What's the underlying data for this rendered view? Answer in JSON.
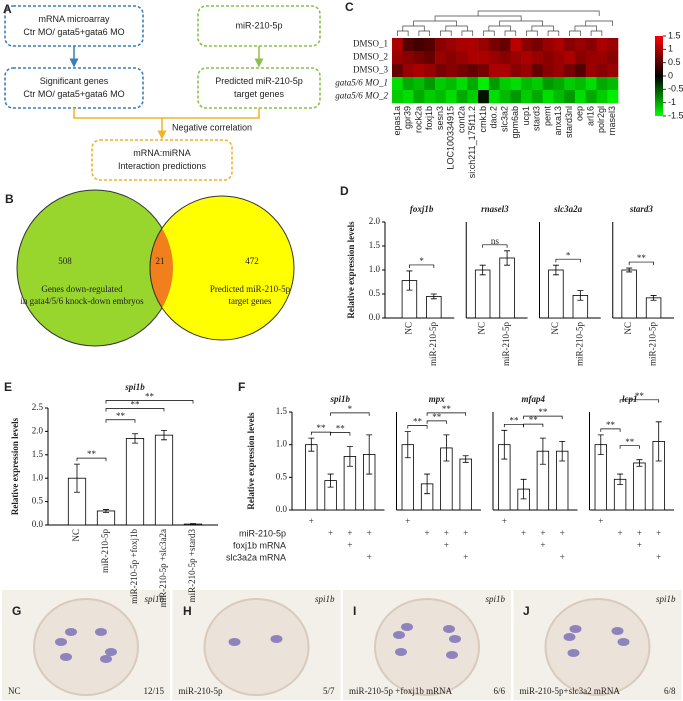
{
  "panels": [
    "A",
    "B",
    "C",
    "D",
    "E",
    "F",
    "G",
    "H",
    "I",
    "J"
  ],
  "flowchart": {
    "boxes": [
      {
        "lines": [
          "mRNA microarray",
          "Ctr MO/ gata5+gata6 MO"
        ]
      },
      {
        "lines": [
          "miR-210-5p"
        ]
      },
      {
        "lines": [
          "Significant genes",
          "Ctr MO/ gata5+gata6 MO"
        ]
      },
      {
        "lines": [
          "Predicted miR-210-5p",
          "target genes"
        ]
      },
      {
        "lines": [
          "mRNA:miRNA",
          "Interaction predictions"
        ]
      }
    ],
    "edge_label": "Negative correlation"
  },
  "venn": {
    "left": 508,
    "overlap": 21,
    "right": 472,
    "left_label": [
      "Genes down-regulated",
      "in gata4/5/6 knock-down embryos"
    ],
    "right_label": [
      "Predicted miR-210-5p",
      "target genes"
    ]
  },
  "heatmap": {
    "rows": [
      "DMSO_1",
      "DMSO_2",
      "DMSO_3",
      "gata5/6 MO_1",
      "gata5/6 MO_2"
    ],
    "columns": [
      "epas1a",
      "gpr39",
      "rock2a",
      "foxj1b",
      "sesn3",
      "LOC100334915",
      "cont2a",
      "si:ch211_175f11.2",
      "cmk1b",
      "dao.2",
      "slc3a2",
      "gpm6ab",
      "ucp1",
      "stard3",
      "pemt",
      "anxa13",
      "stard3nl",
      "oep",
      "arl16",
      "polr2gl",
      "rnasel3"
    ],
    "values": [
      [
        1.0,
        0.5,
        0.4,
        0.5,
        0.8,
        0.9,
        1.0,
        1.0,
        0.9,
        0.7,
        0.6,
        1.1,
        0.8,
        0.7,
        0.9,
        1.0,
        0.8,
        0.9,
        0.8,
        1.0,
        0.9
      ],
      [
        0.9,
        0.8,
        0.7,
        0.6,
        0.9,
        0.8,
        0.9,
        1.0,
        1.0,
        0.9,
        0.8,
        0.9,
        1.0,
        0.9,
        0.8,
        0.9,
        1.0,
        0.8,
        0.9,
        0.9,
        0.8
      ],
      [
        0.6,
        0.9,
        1.0,
        0.9,
        0.7,
        0.8,
        0.7,
        0.6,
        0.7,
        1.0,
        1.0,
        0.8,
        0.9,
        0.6,
        0.8,
        0.9,
        0.7,
        0.5,
        0.9,
        0.8,
        0.9
      ],
      [
        -1.3,
        -1.0,
        -1.1,
        -0.9,
        -1.2,
        -1.1,
        -1.3,
        -1.0,
        -1.4,
        -0.9,
        -1.2,
        -1.3,
        -1.1,
        -1.2,
        -0.9,
        -1.0,
        -1.2,
        -1.1,
        -1.3,
        -1.0,
        -1.1
      ],
      [
        -1.2,
        -1.3,
        -1.0,
        -1.2,
        -1.1,
        -1.3,
        -1.0,
        -1.2,
        -0.1,
        -1.3,
        -1.1,
        -0.9,
        -1.2,
        -1.0,
        -1.3,
        -1.1,
        -0.9,
        -1.3,
        -1.0,
        -1.2,
        -1.4
      ]
    ],
    "colorbar": {
      "lim": [
        -1.5,
        1.5
      ],
      "ticks": [
        1.5,
        1,
        0.5,
        0,
        -0.5,
        -1,
        -1.5
      ]
    }
  },
  "chart_data": [
    {
      "type": "bar",
      "ylabel": "Relative expression levels",
      "ylim": [
        0,
        2
      ],
      "yticks": [
        {
          "value": 0,
          "label": "0.0"
        },
        {
          "value": 0.5,
          "label": "0.5"
        },
        {
          "value": 1,
          "label": "1.0"
        },
        {
          "value": 1.5,
          "label": "1.5"
        },
        {
          "value": 2,
          "label": "2.0"
        }
      ],
      "categories": [
        "NC",
        "miR-210-5p"
      ],
      "groups": [
        {
          "name": "foxj1b",
          "values": [
            0.78,
            0.45
          ],
          "errors": [
            0.2,
            0.05
          ],
          "significance": [
            "*"
          ]
        },
        {
          "name": "rnasel3",
          "values": [
            1.0,
            1.25
          ],
          "errors": [
            0.1,
            0.15
          ],
          "significance": [
            "ns"
          ]
        },
        {
          "name": "slc3a2a",
          "values": [
            1.0,
            0.47
          ],
          "errors": [
            0.1,
            0.1
          ],
          "significance": [
            "*"
          ]
        },
        {
          "name": "stard3",
          "values": [
            1.0,
            0.42
          ],
          "errors": [
            0.04,
            0.05
          ],
          "significance": [
            "**"
          ]
        }
      ]
    },
    {
      "type": "bar",
      "title": "spi1b",
      "ylabel": "Relative expression levels",
      "ylim": [
        0,
        2.5
      ],
      "yticks": [
        {
          "value": 0,
          "label": "0.0"
        },
        {
          "value": 0.5,
          "label": "0.5"
        },
        {
          "value": 1,
          "label": "1.0"
        },
        {
          "value": 1.5,
          "label": "1.5"
        },
        {
          "value": 2,
          "label": "2.0"
        },
        {
          "value": 2.5,
          "label": "2.5"
        }
      ],
      "categories": [
        "NC",
        "miR-210-5p",
        "miR-210-5p +foxj1b",
        "miR-210-5p +slc3a2a",
        "miR-210-5p +stard3"
      ],
      "values": [
        1.0,
        0.3,
        1.85,
        1.92,
        0.02
      ],
      "errors": [
        0.3,
        0.03,
        0.1,
        0.1,
        0.01
      ],
      "significance": [
        "**",
        "**",
        "**",
        "**"
      ]
    },
    {
      "type": "bar",
      "ylabel": "Relative expression levels",
      "ylim": [
        0,
        1.5
      ],
      "yticks": [
        {
          "value": 0,
          "label": "0.0"
        },
        {
          "value": 0.5,
          "label": "0.5"
        },
        {
          "value": 1,
          "label": "1.0"
        },
        {
          "value": 1.5,
          "label": "1.5"
        }
      ],
      "groups": [
        {
          "name": "spi1b",
          "values": [
            1.0,
            0.45,
            0.82,
            0.85
          ],
          "errors": [
            0.1,
            0.1,
            0.15,
            0.3
          ],
          "significance": [
            "**",
            "**",
            "*"
          ]
        },
        {
          "name": "mpx",
          "values": [
            1.0,
            0.4,
            0.95,
            0.78
          ],
          "errors": [
            0.2,
            0.15,
            0.2,
            0.05
          ],
          "significance": [
            "**",
            "**",
            "**"
          ]
        },
        {
          "name": "mfap4",
          "values": [
            1.0,
            0.32,
            0.9,
            0.9
          ],
          "errors": [
            0.22,
            0.15,
            0.2,
            0.15
          ],
          "significance": [
            "**",
            "**",
            "**"
          ]
        },
        {
          "name": "lcp1",
          "values": [
            1.0,
            0.47,
            0.72,
            1.05
          ],
          "errors": [
            0.15,
            0.08,
            0.05,
            0.3
          ],
          "significance": [
            "**",
            "**",
            "**"
          ]
        }
      ],
      "treatments": [
        {
          "name": null,
          "marks": [
            "+",
            null,
            null,
            null
          ]
        },
        {
          "name": "miR-210-5p",
          "marks": [
            null,
            "+",
            "+",
            "+"
          ]
        },
        {
          "name": "foxj1b mRNA",
          "marks": [
            null,
            null,
            "+",
            null
          ]
        },
        {
          "name": "slc3a2a mRNA",
          "marks": [
            null,
            null,
            null,
            "+"
          ]
        }
      ]
    }
  ],
  "images": [
    {
      "gene": "spi1b",
      "condition": "NC",
      "ratio": "12/15"
    },
    {
      "gene": "spi1b",
      "condition": "miR-210-5p",
      "ratio": "5/7"
    },
    {
      "gene": "spi1b",
      "condition": "miR-210-5p +foxj1b mRNA",
      "ratio": "6/6"
    },
    {
      "gene": "spi1b",
      "condition": "miR-210-5p+slc3a2 mRNA",
      "ratio": "6/8"
    }
  ]
}
